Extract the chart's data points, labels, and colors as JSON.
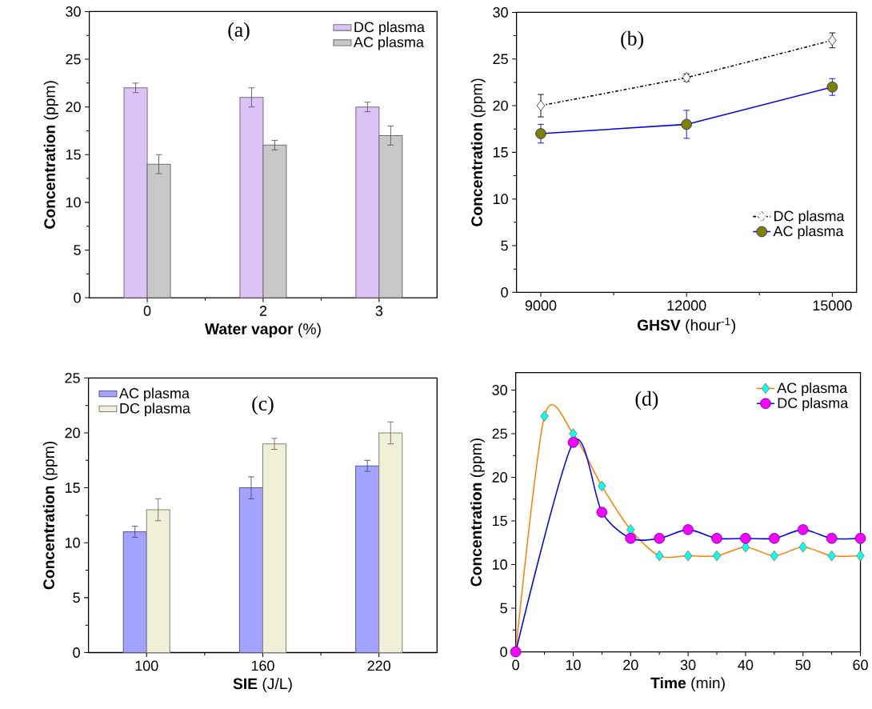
{
  "chart_data": [
    {
      "type": "bar",
      "categories": [
        "0",
        "2",
        "3"
      ],
      "xlabel": "**Water vapor** (%)",
      "ylabel": "**Concentration** (ppm)",
      "ylim": [
        0,
        30
      ],
      "yticks": [
        0,
        5,
        10,
        15,
        20,
        25,
        30
      ],
      "legend": "top right",
      "annotations": [
        "(a)"
      ],
      "series": [
        {
          "name": "DC plasma",
          "color": "#dcc3f7",
          "values": [
            22,
            21,
            20
          ],
          "errors": [
            0.5,
            1,
            0.5
          ]
        },
        {
          "name": "AC plasma",
          "color": "#c8c8c8",
          "values": [
            14,
            16,
            17
          ],
          "errors": [
            1,
            0.5,
            1
          ]
        }
      ]
    },
    {
      "type": "line",
      "x": [
        9000,
        12000,
        15000
      ],
      "xlim": [
        8500,
        15500
      ],
      "xticks": [
        9000,
        12000,
        15000
      ],
      "xlabel": "**GHSV** (hour$^{-1}$)",
      "ylabel": "**Concentration** (ppm)",
      "ylim": [
        0,
        30
      ],
      "yticks": [
        0,
        5,
        10,
        15,
        20,
        25,
        30
      ],
      "legend": "bottom right",
      "annotations": [
        "(b)"
      ],
      "series": [
        {
          "name": "DC plasma",
          "color": "#000000",
          "colors": [
            "#ffffff",
            "#ffffff",
            "#ffffff"
          ],
          "marker": "diamond",
          "line_style": "dashdot",
          "values": [
            20,
            23,
            27
          ],
          "errors": [
            1.2,
            0.4,
            0.8
          ]
        },
        {
          "name": "AC plasma",
          "color": "#0000ff",
          "colors": [
            "#808000",
            "#808000",
            "#808000"
          ],
          "marker": "circle",
          "values": [
            17,
            18,
            22
          ],
          "errors": [
            1,
            1.5,
            0.9
          ]
        }
      ]
    },
    {
      "type": "bar",
      "categories": [
        "100",
        "160",
        "220"
      ],
      "xlabel": "**SIE** (J/L)",
      "ylabel": "**Concentration** (ppm)",
      "ylim": [
        0,
        25
      ],
      "yticks": [
        0,
        5,
        10,
        15,
        20,
        25
      ],
      "legend": "top left",
      "annotations": [
        "(c)"
      ],
      "series": [
        {
          "name": "AC plasma",
          "color": "#a3a3ff",
          "values": [
            11,
            15,
            17
          ],
          "errors": [
            0.5,
            1,
            0.5
          ]
        },
        {
          "name": "DC plasma",
          "color": "#f0f0d8",
          "values": [
            13,
            19,
            20
          ],
          "errors": [
            1,
            0.5,
            1
          ]
        }
      ]
    },
    {
      "type": "line",
      "x": [
        0,
        5,
        10,
        15,
        20,
        25,
        30,
        35,
        40,
        45,
        50,
        55,
        60
      ],
      "xlim": [
        0,
        60
      ],
      "xticks": [
        0,
        10,
        20,
        30,
        40,
        50,
        60
      ],
      "xlabel": "**Time** (min)",
      "ylabel": "**Concentration** (ppm)",
      "ylim": [
        0,
        32
      ],
      "yticks": [
        0,
        5,
        10,
        15,
        20,
        25,
        30
      ],
      "legend": "top right",
      "annotations": [
        "(d)"
      ],
      "series": [
        {
          "name": "AC plasma",
          "color": "#ff8000",
          "colors": [
            "#00ffff",
            "#00ffff",
            "#00ffff",
            "#00ffff",
            "#00ffff",
            "#00ffff",
            "#00ffff",
            "#00ffff",
            "#00ffff",
            "#00ffff",
            "#00ffff",
            "#00ffff",
            "#00ffff"
          ],
          "marker": "diamond",
          "values": [
            0,
            27,
            25,
            19,
            14,
            11,
            11,
            11,
            12,
            11,
            12,
            11,
            11
          ]
        },
        {
          "name": "DC plasma",
          "color": "#0000ff",
          "colors": [
            "#ff00ff",
            "#ff00ff",
            "#ff00ff",
            "#ff00ff",
            "#ff00ff",
            "#ff00ff",
            "#ff00ff",
            "#ff00ff",
            "#ff00ff",
            "#ff00ff",
            "#ff00ff",
            "#ff00ff",
            "#ff00ff"
          ],
          "marker": "circle",
          "values": [
            0,
            null,
            24,
            16,
            13,
            13,
            14,
            13,
            13,
            13,
            14,
            13,
            13
          ]
        }
      ]
    }
  ]
}
